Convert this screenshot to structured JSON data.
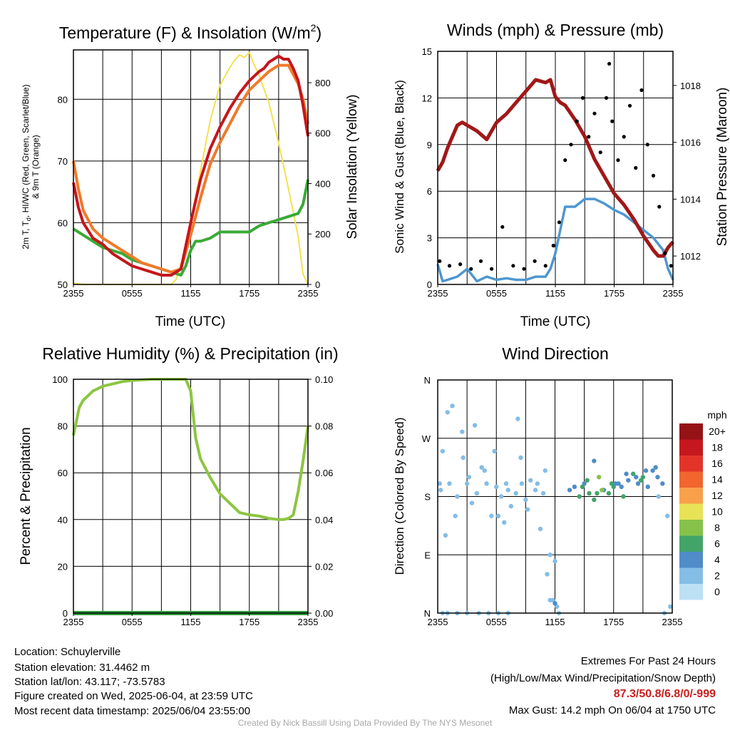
{
  "panels": {
    "temperature": {
      "title_main": "Temperature (F) & Insolation (W/m",
      "title_sup": "2",
      "title_end": ")",
      "ylabel_left_line1_parts": [
        "2m T, T",
        "d",
        ", HI/WC (Red, Green, Scarlet/Blue)"
      ],
      "ylabel_left_line2": "& 9m T (Orange)",
      "ylabel_right": "Solar Insolation (Yellow)",
      "xlabel": "Time (UTC)"
    },
    "winds": {
      "title": "Winds (mph) & Pressure (mb)",
      "ylabel_left": "Sonic Wind & Gust (Blue, Black)",
      "ylabel_right": "Station Pressure (Maroon)",
      "xlabel": "Time (UTC)"
    },
    "humidity": {
      "title": "Relative Humidity (%) & Precipitation (in)",
      "ylabel_left": "Percent & Precipitation"
    },
    "direction": {
      "title": "Wind Direction",
      "ylabel_left": "Direction (Colored By Speed)",
      "colorbar_title": "mph"
    }
  },
  "colors": {
    "temp_red": "#c4161c",
    "dewpoint_green": "#3aaa35",
    "temp_9m_orange": "#f07a2a",
    "insolation_yellow": "#f5e050",
    "wind_blue": "#4f97d0",
    "gust_black": "#000000",
    "pressure_maroon": "#a01818",
    "rh_green": "#8cc540",
    "precip_green": "#2f9a3c"
  },
  "chart_data": [
    {
      "type": "line",
      "panel": "temperature",
      "x_ticks": [
        "2355",
        "0555",
        "1155",
        "1755",
        "2355"
      ],
      "x_range_hours": [
        0,
        24
      ],
      "y_left_ticks": [
        "50",
        "60",
        "70",
        "80"
      ],
      "y_left_range": [
        50,
        88
      ],
      "y_right_ticks": [
        "0",
        "200",
        "400",
        "600",
        "800"
      ],
      "y_right_range": [
        0,
        930
      ],
      "grid": true,
      "series": [
        {
          "key": "temp",
          "axis": "left",
          "color": "#c4161c",
          "x": [
            0,
            0.5,
            1,
            2,
            3,
            4,
            5,
            6,
            7,
            8,
            9,
            10,
            11,
            12,
            13,
            14,
            15,
            16,
            17,
            18,
            19,
            19.5,
            20,
            20.5,
            21,
            21.5,
            22,
            22.5,
            23,
            23.5,
            24
          ],
          "y": [
            66.5,
            62.5,
            60,
            57.5,
            56.5,
            55,
            54,
            53,
            52.5,
            52,
            51.5,
            51.5,
            52.5,
            60,
            67,
            72,
            75.5,
            78.5,
            81,
            83,
            84.5,
            85,
            86,
            86.5,
            87,
            86.5,
            86.5,
            85,
            83,
            79,
            74
          ]
        },
        {
          "key": "temp_9m",
          "axis": "left",
          "color": "#f07a2a",
          "x": [
            0,
            0.5,
            1,
            2,
            3,
            4,
            5,
            6,
            7,
            8,
            9,
            10,
            11,
            12,
            13,
            14,
            15,
            16,
            17,
            18,
            19,
            20,
            21,
            22,
            22.5,
            23,
            23.5,
            24
          ],
          "y": [
            70,
            65.5,
            62,
            59,
            57.5,
            56.5,
            55.5,
            54.5,
            53.5,
            53,
            52.5,
            52,
            52.5,
            58,
            64,
            69.5,
            73,
            76,
            79,
            81.5,
            83,
            84.5,
            85.5,
            85.5,
            84,
            82.5,
            80,
            76
          ]
        },
        {
          "key": "dewpoint",
          "axis": "left",
          "color": "#3aaa35",
          "x": [
            0,
            0.5,
            1,
            2,
            3,
            4,
            5,
            6,
            7,
            8,
            9,
            10,
            11,
            11.5,
            12,
            12.5,
            13,
            14,
            15,
            16,
            17,
            18,
            19,
            20,
            21,
            22,
            23,
            23.5,
            24
          ],
          "y": [
            59,
            58.5,
            58,
            57,
            56,
            55.5,
            55,
            54,
            53.5,
            53,
            52.5,
            52,
            51.5,
            53,
            55.5,
            57,
            57,
            57.5,
            58.5,
            58.5,
            58.5,
            58.5,
            59.5,
            60,
            60.5,
            61,
            61.5,
            63,
            67
          ]
        },
        {
          "key": "insolation",
          "axis": "right",
          "color": "#f5e050",
          "x": [
            0,
            1,
            3,
            5,
            8,
            10,
            10.5,
            11,
            11.5,
            12,
            13,
            14,
            15,
            16,
            16.5,
            17,
            17.5,
            18,
            18.5,
            19,
            20,
            21,
            22,
            23,
            23.5,
            24
          ],
          "y": [
            5,
            0,
            0,
            0,
            0,
            0,
            20,
            80,
            150,
            250,
            450,
            650,
            790,
            860,
            890,
            910,
            900,
            920,
            870,
            830,
            720,
            560,
            380,
            190,
            40,
            0
          ]
        }
      ]
    },
    {
      "type": "line",
      "panel": "winds",
      "x_ticks": [
        "2355",
        "0555",
        "1155",
        "1755",
        "2355"
      ],
      "x_range_hours": [
        0,
        24
      ],
      "y_left_ticks": [
        "0",
        "3",
        "6",
        "9",
        "12",
        "15"
      ],
      "y_left_range": [
        0,
        15
      ],
      "y_right_ticks": [
        "1012",
        "1014",
        "1016",
        "1018"
      ],
      "y_right_range": [
        1011.0,
        1019.2
      ],
      "grid": true,
      "series": [
        {
          "key": "pressure",
          "axis": "right",
          "color": "#a01818",
          "x": [
            0,
            0.5,
            1,
            1.5,
            2,
            2.5,
            3,
            4,
            5,
            5.5,
            6,
            7,
            8,
            9,
            10,
            11,
            11.5,
            12,
            12.5,
            13,
            14,
            15,
            16,
            17,
            18,
            19,
            20,
            21,
            22,
            22.5,
            23,
            23.5,
            24
          ],
          "y": [
            1015.0,
            1015.3,
            1015.8,
            1016.2,
            1016.6,
            1016.7,
            1016.6,
            1016.4,
            1016.1,
            1016.4,
            1016.7,
            1017.0,
            1017.4,
            1017.8,
            1018.2,
            1018.1,
            1018.2,
            1017.6,
            1017.4,
            1017.3,
            1016.8,
            1016.2,
            1015.4,
            1014.8,
            1014.2,
            1013.8,
            1013.3,
            1012.7,
            1012.2,
            1012.0,
            1012.0,
            1012.3,
            1012.5
          ]
        },
        {
          "key": "wind",
          "axis": "left",
          "color": "#4f97d0",
          "x": [
            0,
            0.5,
            1,
            2,
            3,
            4,
            5,
            6,
            7,
            8,
            9,
            10,
            11,
            11.5,
            12,
            12.5,
            13,
            14,
            15,
            16,
            17,
            18,
            19,
            20,
            21,
            22,
            23,
            23.5,
            24
          ],
          "y": [
            1.3,
            0.2,
            0.3,
            0.5,
            1.0,
            0.2,
            0.5,
            0.3,
            0.4,
            0.3,
            0.3,
            0.5,
            0.5,
            1.0,
            2.0,
            3.5,
            5.0,
            5.0,
            5.5,
            5.5,
            5.2,
            4.8,
            4.5,
            4.0,
            3.5,
            3.0,
            2.2,
            1.0,
            0.3
          ]
        },
        {
          "key": "gust",
          "axis": "left",
          "color": "#000000",
          "style": "points",
          "x": [
            0.2,
            1.2,
            2.3,
            3.4,
            4.4,
            5.5,
            6.6,
            7.7,
            8.8,
            9.9,
            11.0,
            11.8,
            12.4,
            13.0,
            13.6,
            14.2,
            14.8,
            15.4,
            16.0,
            16.6,
            17.2,
            17.5,
            17.8,
            18.4,
            19.0,
            19.6,
            20.2,
            20.8,
            21.4,
            22.0,
            22.6,
            23.2,
            23.8
          ],
          "y": [
            1.5,
            1.2,
            1.3,
            1.0,
            1.5,
            1.0,
            3.7,
            1.2,
            1.0,
            1.5,
            1.2,
            2.5,
            4.0,
            8.0,
            9.0,
            10.5,
            12.0,
            9.5,
            11.0,
            8.5,
            12.0,
            14.2,
            10.5,
            8.0,
            9.5,
            11.5,
            7.5,
            12.5,
            9.0,
            7.0,
            5.0,
            2.0,
            1.2
          ]
        }
      ]
    },
    {
      "type": "line",
      "panel": "humidity",
      "x_ticks": [
        "2355",
        "0555",
        "1155",
        "1755",
        "2355"
      ],
      "x_range_hours": [
        0,
        24
      ],
      "y_left_ticks": [
        "0",
        "20",
        "40",
        "60",
        "80",
        "100"
      ],
      "y_left_range": [
        0,
        100
      ],
      "y_right_ticks": [
        "0.00",
        "0.02",
        "0.04",
        "0.06",
        "0.08",
        "0.10"
      ],
      "y_right_range": [
        0,
        0.1
      ],
      "grid": true,
      "series": [
        {
          "key": "rh",
          "axis": "left",
          "color": "#8cc540",
          "x": [
            0,
            0.3,
            0.6,
            1,
            1.5,
            2,
            3,
            4,
            5,
            6,
            8,
            10,
            11.5,
            12,
            12.5,
            13,
            14,
            15,
            16,
            17,
            18,
            19,
            20,
            21,
            21.5,
            22,
            22.5,
            23,
            23.5,
            24
          ],
          "y": [
            76,
            82,
            88,
            91,
            93,
            95,
            97,
            98,
            99,
            99.5,
            100,
            100,
            100,
            95,
            75,
            66,
            58,
            51,
            47,
            43,
            42,
            41.5,
            40.5,
            40,
            40,
            40.5,
            42,
            52,
            65,
            80
          ]
        },
        {
          "key": "precip",
          "axis": "right",
          "color": "#2f9a3c",
          "x": [
            0,
            24
          ],
          "y": [
            0,
            0
          ]
        }
      ]
    },
    {
      "type": "scatter",
      "panel": "direction",
      "x_ticks": [
        "2355",
        "0555",
        "1155",
        "1755",
        "2355"
      ],
      "x_range_hours": [
        0,
        24
      ],
      "y_ticks": [
        "N",
        "E",
        "S",
        "W",
        "N"
      ],
      "y_range_degrees": [
        0,
        360
      ],
      "grid": true,
      "colorbar": {
        "title": "mph",
        "labels": [
          "20+",
          "18",
          "16",
          "14",
          "12",
          "10",
          "8",
          "6",
          "4",
          "2",
          "0"
        ],
        "colors": [
          "#951217",
          "#c5181e",
          "#e3342a",
          "#f0662e",
          "#f8a04a",
          "#e8e257",
          "#86c24a",
          "#43a46a",
          "#4f8cc8",
          "#84bde6",
          "#bce1f5"
        ]
      },
      "points_x": [
        0.5,
        1.0,
        1.2,
        2.0,
        2.5,
        3.0,
        3.5,
        4.0,
        4.5,
        5.0,
        5.5,
        6.0,
        6.5,
        7.0,
        7.5,
        8.0,
        8.5,
        9.0,
        9.5,
        10.0,
        10.5,
        11.0,
        11.5,
        12.0,
        0.3,
        1.8,
        3.2,
        5.8,
        7.2,
        9.2,
        10.8,
        0.8,
        2.6,
        4.8,
        6.8,
        8.6,
        11.2,
        11.8,
        12.2,
        1.5,
        3.8,
        6.2,
        8.2,
        10.2,
        14.0,
        14.5,
        15.0,
        15.5,
        16.0,
        16.5,
        17.0,
        17.5,
        18.0,
        18.5,
        19.0,
        19.5,
        20.0,
        20.5,
        21.0,
        21.5,
        22.0,
        22.5,
        23.0,
        13.5,
        14.8,
        16.3,
        17.8,
        19.3,
        20.8,
        22.3,
        16.8,
        18.8,
        20.3,
        23.5,
        23.8,
        1.0,
        2.0,
        3.0,
        0.2,
        0.5,
        4.2,
        5.2,
        6.2,
        7.2,
        11.5,
        12.0,
        12.4,
        22.6,
        23.2,
        15.3,
        18.2,
        21.3,
        16.0
      ],
      "points_deg": [
        250,
        310,
        200,
        180,
        280,
        200,
        170,
        185,
        225,
        200,
        150,
        195,
        180,
        200,
        165,
        185,
        240,
        175,
        205,
        190,
        130,
        220,
        90,
        80,
        190,
        150,
        210,
        250,
        190,
        160,
        185,
        120,
        240,
        220,
        140,
        200,
        60,
        20,
        10,
        320,
        290,
        150,
        300,
        200,
        195,
        180,
        200,
        185,
        175,
        210,
        190,
        185,
        195,
        200,
        180,
        205,
        215,
        200,
        210,
        195,
        220,
        210,
        200,
        190,
        195,
        185,
        200,
        215,
        205,
        225,
        190,
        195,
        210,
        150,
        10,
        0,
        0,
        0,
        200,
        0,
        0,
        0,
        0,
        0,
        20,
        15,
        0,
        180,
        0,
        205,
        200,
        220,
        235
      ],
      "points_speed": [
        1,
        1,
        1,
        1,
        1,
        1,
        1,
        1,
        1,
        1,
        1,
        1,
        1,
        1,
        1,
        1,
        1,
        1,
        1,
        1,
        1,
        1,
        1,
        2,
        1,
        1,
        1,
        1,
        1,
        1,
        1,
        1,
        1,
        1,
        1,
        1,
        2,
        1,
        1,
        1,
        1,
        1,
        1,
        1,
        4,
        5,
        4,
        6,
        5,
        7,
        4,
        6,
        5,
        4,
        6,
        4,
        5,
        4,
        5,
        4,
        3,
        4,
        3,
        4,
        5,
        6,
        5,
        4,
        5,
        4,
        7,
        4,
        3,
        1,
        1,
        1,
        1,
        1,
        1,
        1,
        1,
        1,
        1,
        1,
        2,
        3,
        2,
        1,
        1,
        5,
        4,
        4,
        4
      ]
    }
  ],
  "footer": {
    "location": "Location: Schuylerville",
    "elevation": "Station elevation: 31.4462 m",
    "latlon": "Station lat/lon: 43.117; -73.5783",
    "created": "Figure created on Wed, 2025-06-04, at 23:59 UTC",
    "recent": "Most recent data timestamp: 2025/06/04 23:55:00",
    "extremes_title": "Extremes For Past 24 Hours",
    "extremes_legend": "(High/Low/Max Wind/Precipitation/Snow Depth)",
    "extremes_values": "87.3/50.8/6.8/0/-999",
    "max_gust": "Max Gust: 14.2 mph On 06/04 at 1750 UTC",
    "credit": "Created By Nick Bassill Using Data Provided By The NYS Mesonet"
  }
}
